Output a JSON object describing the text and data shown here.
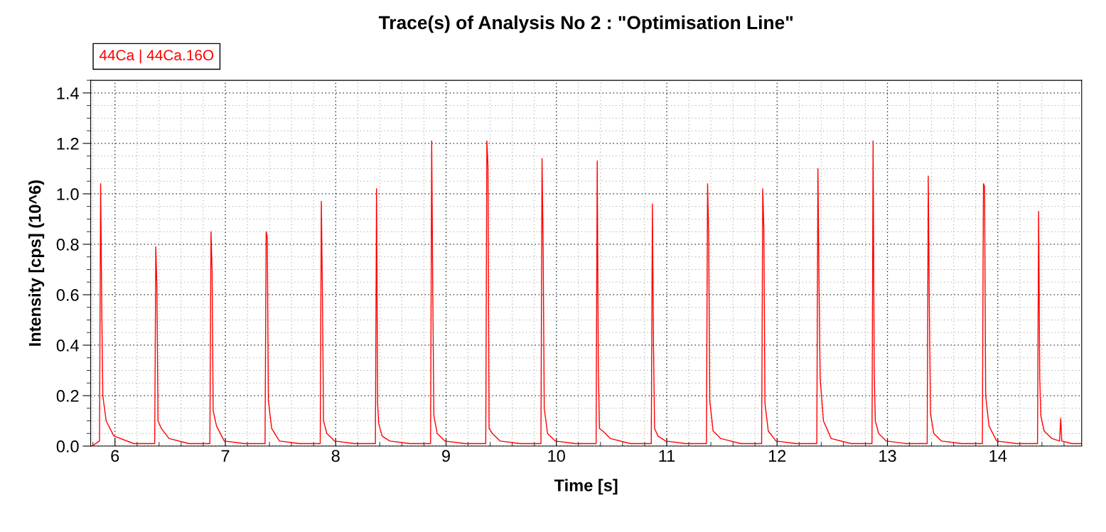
{
  "chart_data": {
    "type": "line",
    "title": "Trace(s) of Analysis No 2 : \"Optimisation Line\"",
    "xlabel": "Time [s]",
    "ylabel": "Intensity [cps] (10^6)",
    "series": [
      {
        "name": "44Ca | 44Ca.16O",
        "color": "#ff0000",
        "x": [
          5.79,
          5.86,
          5.87,
          5.88,
          5.89,
          5.92,
          5.99,
          6.17,
          6.36,
          6.37,
          6.38,
          6.39,
          6.42,
          6.49,
          6.67,
          6.86,
          6.87,
          6.88,
          6.89,
          6.92,
          6.99,
          7.17,
          7.36,
          7.37,
          7.38,
          7.39,
          7.42,
          7.49,
          7.67,
          7.86,
          7.87,
          7.88,
          7.89,
          7.92,
          7.99,
          8.17,
          8.36,
          8.37,
          8.38,
          8.39,
          8.42,
          8.49,
          8.67,
          8.86,
          8.87,
          8.88,
          8.89,
          8.92,
          8.99,
          9.17,
          9.36,
          9.37,
          9.38,
          9.39,
          9.42,
          9.49,
          9.67,
          9.86,
          9.87,
          9.88,
          9.89,
          9.92,
          9.99,
          10.17,
          10.36,
          10.37,
          10.38,
          10.39,
          10.42,
          10.49,
          10.67,
          10.86,
          10.87,
          10.88,
          10.89,
          10.92,
          10.99,
          11.17,
          11.36,
          11.37,
          11.38,
          11.39,
          11.42,
          11.49,
          11.67,
          11.86,
          11.87,
          11.88,
          11.89,
          11.92,
          11.99,
          12.17,
          12.36,
          12.37,
          12.38,
          12.39,
          12.42,
          12.49,
          12.67,
          12.86,
          12.87,
          12.88,
          12.89,
          12.92,
          12.99,
          13.17,
          13.36,
          13.37,
          13.38,
          13.39,
          13.42,
          13.49,
          13.67,
          13.86,
          13.87,
          13.88,
          13.89,
          13.92,
          13.99,
          14.17,
          14.36,
          14.37,
          14.38,
          14.39,
          14.42,
          14.49,
          14.56,
          14.57,
          14.58,
          14.67,
          14.76
        ],
        "values": [
          0.0,
          0.02,
          1.04,
          0.56,
          0.2,
          0.1,
          0.04,
          0.01,
          0.01,
          0.79,
          0.63,
          0.1,
          0.07,
          0.03,
          0.01,
          0.01,
          0.85,
          0.7,
          0.14,
          0.08,
          0.02,
          0.01,
          0.01,
          0.85,
          0.83,
          0.18,
          0.07,
          0.02,
          0.01,
          0.01,
          0.97,
          0.6,
          0.1,
          0.05,
          0.02,
          0.01,
          0.01,
          1.02,
          0.17,
          0.09,
          0.04,
          0.02,
          0.01,
          0.01,
          1.21,
          0.6,
          0.12,
          0.05,
          0.02,
          0.01,
          0.01,
          1.21,
          1.11,
          0.07,
          0.05,
          0.02,
          0.01,
          0.01,
          1.14,
          0.79,
          0.15,
          0.05,
          0.02,
          0.01,
          0.01,
          1.13,
          0.32,
          0.07,
          0.06,
          0.03,
          0.01,
          0.01,
          0.96,
          0.4,
          0.07,
          0.04,
          0.02,
          0.01,
          0.01,
          1.04,
          0.84,
          0.18,
          0.06,
          0.03,
          0.01,
          0.01,
          1.02,
          0.86,
          0.17,
          0.06,
          0.02,
          0.01,
          0.01,
          1.1,
          0.64,
          0.27,
          0.1,
          0.03,
          0.01,
          0.01,
          1.21,
          0.3,
          0.1,
          0.05,
          0.02,
          0.01,
          0.01,
          1.07,
          0.53,
          0.13,
          0.05,
          0.02,
          0.01,
          0.01,
          1.04,
          1.03,
          0.2,
          0.08,
          0.02,
          0.01,
          0.01,
          0.93,
          0.27,
          0.12,
          0.06,
          0.03,
          0.02,
          0.11,
          0.02,
          0.01,
          0.01
        ]
      }
    ],
    "xlim": [
      5.78,
      14.76
    ],
    "ylim": [
      0,
      1.45
    ],
    "xticks": [
      6,
      7,
      8,
      9,
      10,
      11,
      12,
      13,
      14
    ],
    "yticks": [
      {
        "value": 0,
        "label": "0.0"
      },
      {
        "value": 0.2,
        "label": "0.2"
      },
      {
        "value": 0.4,
        "label": "0.4"
      },
      {
        "value": 0.6,
        "label": "0.6"
      },
      {
        "value": 0.8,
        "label": "0.8"
      },
      {
        "value": 1.0,
        "label": "1.0"
      },
      {
        "value": 1.2,
        "label": "1.2"
      },
      {
        "value": 1.4,
        "label": "1.4"
      }
    ],
    "grid": true,
    "legend": "top left",
    "marker": "none",
    "line_style": "solid"
  }
}
